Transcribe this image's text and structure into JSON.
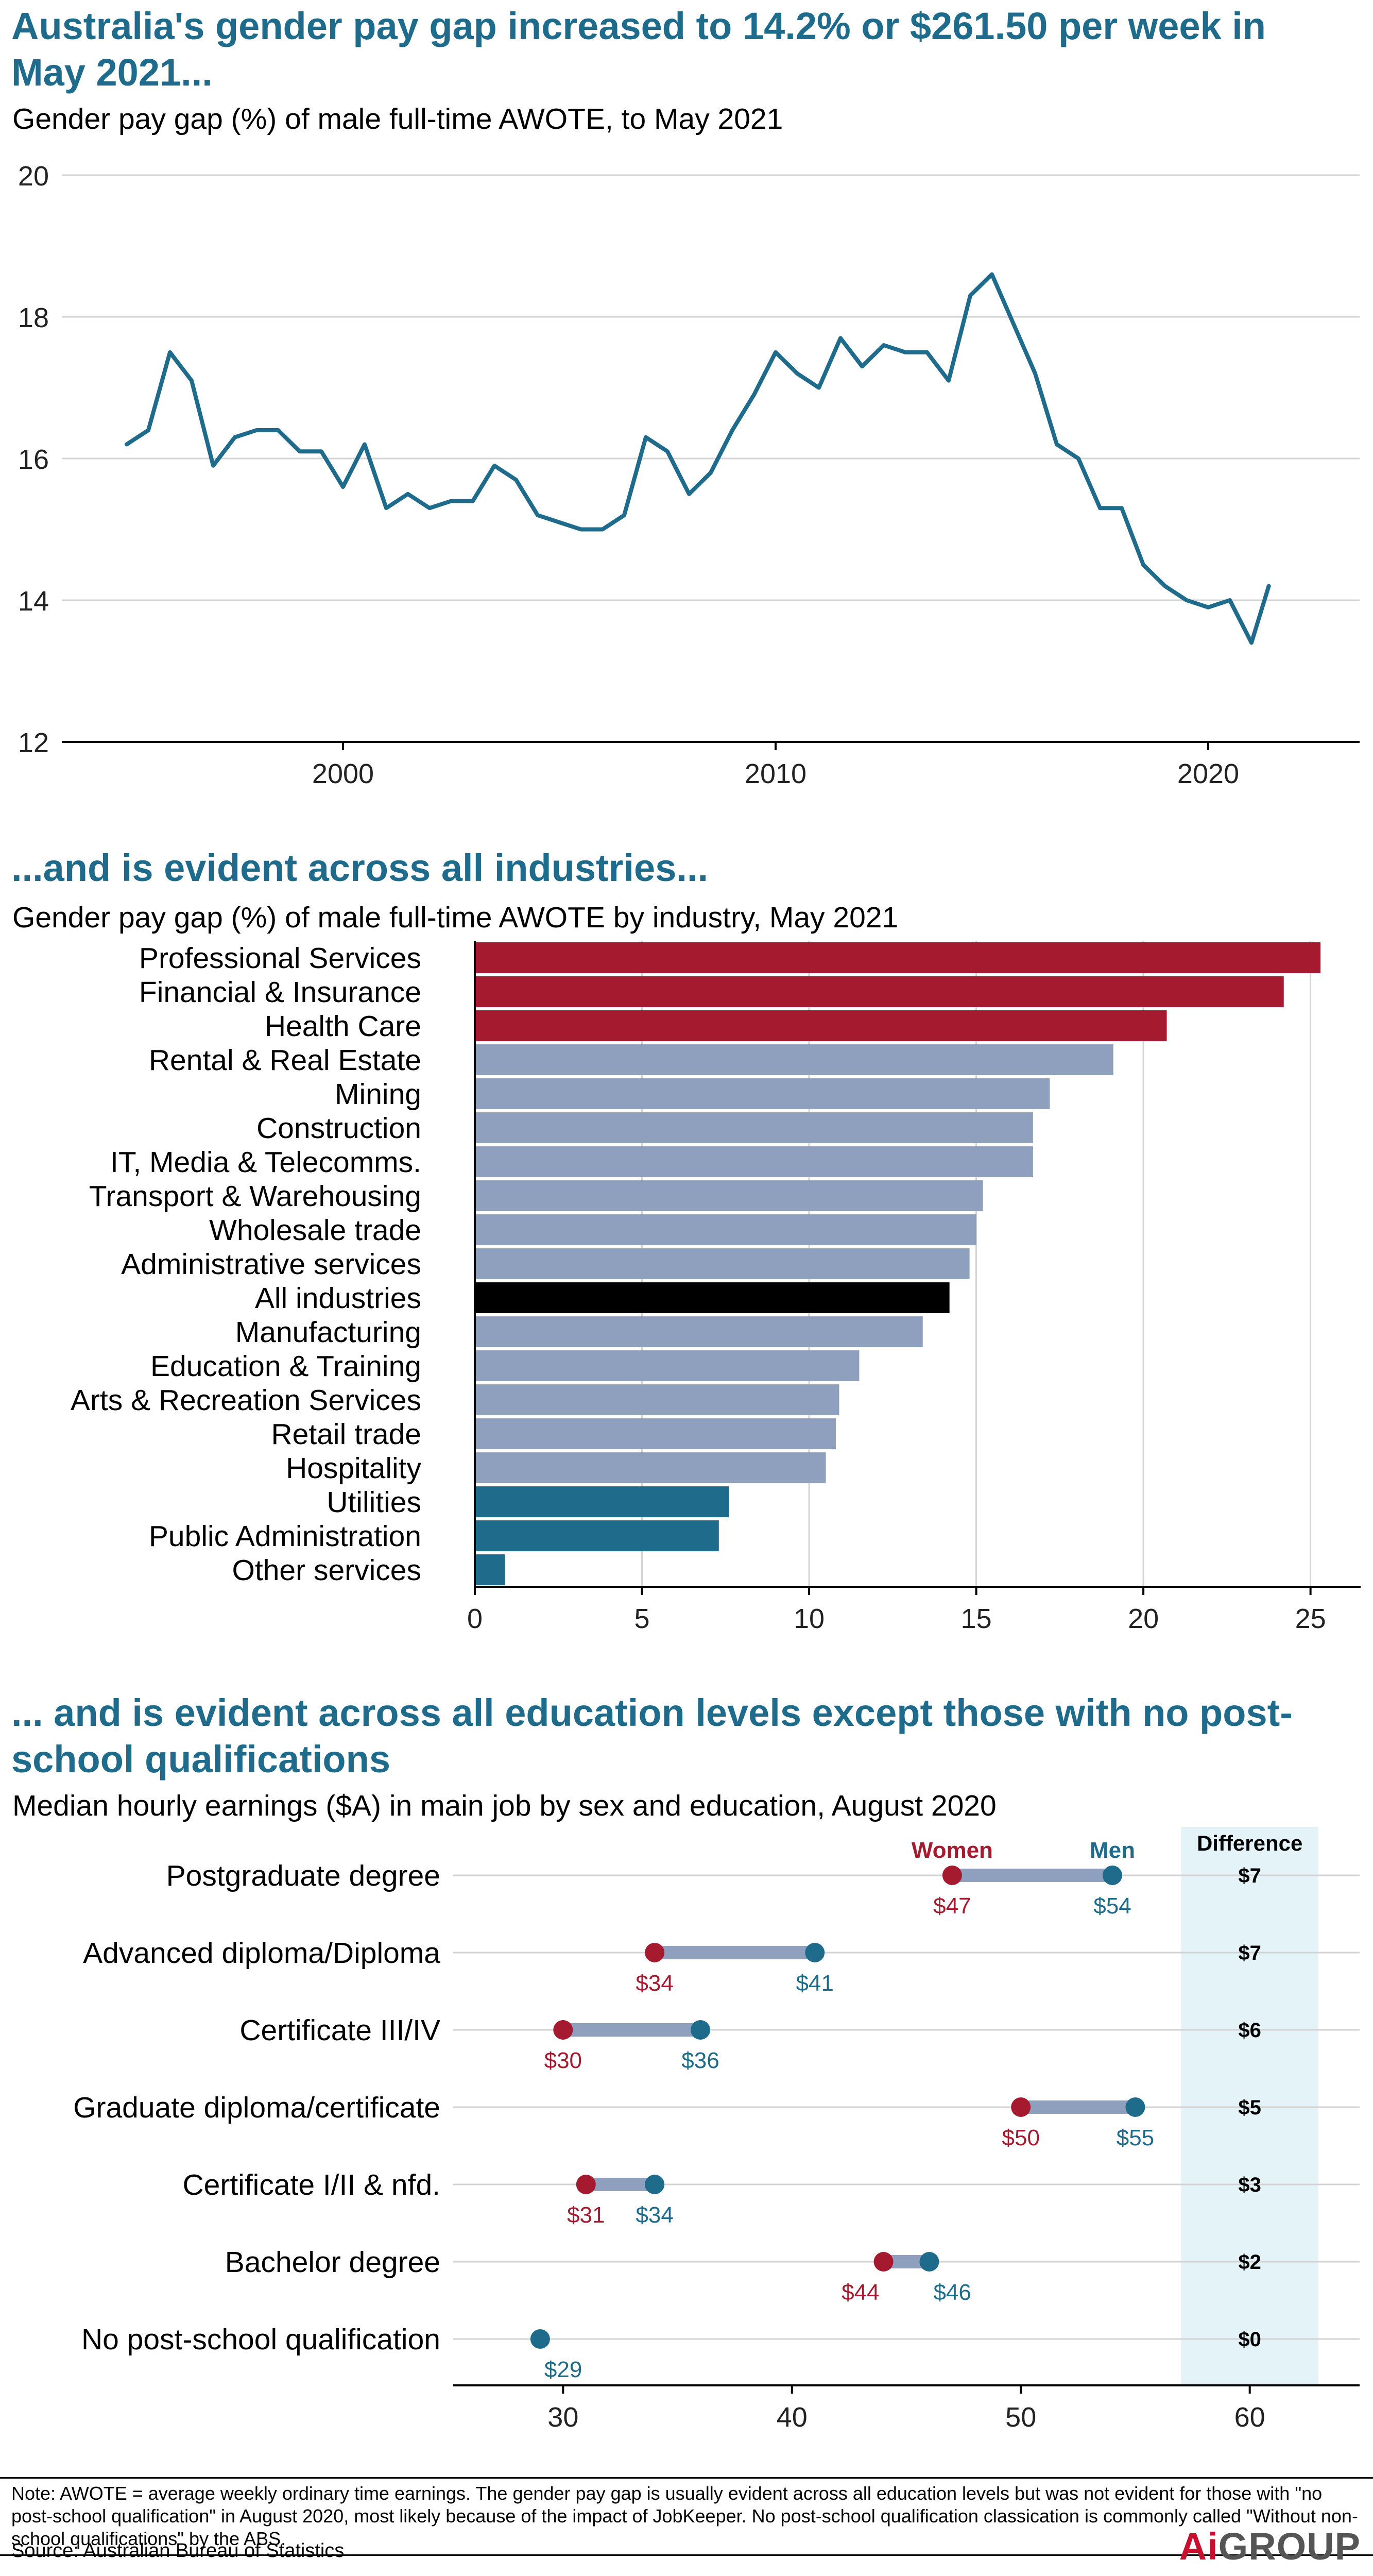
{
  "colors": {
    "title": "#1f6b8c",
    "line": "#1f6b8c",
    "bar_high": "#a51a2e",
    "bar_mid": "#8fa0bf",
    "bar_total": "#000000",
    "bar_low": "#1f6b8c",
    "women": "#a51a2e",
    "men": "#1f6b8c",
    "connector": "#8fa0bf",
    "difference_bg": "#e3f3f8"
  },
  "panel1": {
    "title": "Australia's gender pay gap increased to 14.2% or $261.50 per week in May 2021...",
    "subtitle": "Gender pay gap (%) of male full-time AWOTE, to May 2021"
  },
  "panel2": {
    "title": "...and is evident across all industries...",
    "subtitle": "Gender pay gap (%) of male full-time AWOTE by industry, May 2021"
  },
  "panel3": {
    "title": "... and is evident across all education levels except those with no post-school qualifications",
    "subtitle": "Median hourly earnings ($A) in main job by sex and education, August 2020",
    "legend_women": "Women",
    "legend_men": "Men",
    "difference_header": "Difference"
  },
  "chart_data": [
    {
      "type": "line",
      "title": "Australia's gender pay gap increased to 14.2% or $261.50 per week in May 2021...",
      "subtitle": "Gender pay gap (%) of male full-time AWOTE, to May 2021",
      "xlim": [
        1993.5,
        2023.5
      ],
      "ylim": [
        12,
        20
      ],
      "xticks": [
        2000,
        2010,
        2020
      ],
      "yticks": [
        12,
        14,
        16,
        18,
        20
      ],
      "grid": true,
      "x": [
        1995.0,
        1995.5,
        1996.0,
        1996.5,
        1997.0,
        1997.5,
        1998.0,
        1998.5,
        1999.0,
        1999.5,
        2000.0,
        2000.5,
        2001.0,
        2001.5,
        2002.0,
        2002.5,
        2003.0,
        2003.5,
        2004.0,
        2004.5,
        2005.0,
        2005.5,
        2006.0,
        2006.5,
        2007.0,
        2007.5,
        2008.0,
        2008.5,
        2009.0,
        2009.5,
        2010.0,
        2010.5,
        2011.0,
        2011.5,
        2012.0,
        2012.5,
        2013.0,
        2013.5,
        2014.0,
        2014.5,
        2015.0,
        2015.5,
        2016.0,
        2016.5,
        2017.0,
        2017.5,
        2018.0,
        2018.5,
        2019.0,
        2019.5,
        2020.0,
        2020.5,
        2021.0,
        2021.4
      ],
      "y": [
        16.2,
        16.4,
        17.5,
        17.1,
        15.9,
        16.3,
        16.4,
        16.4,
        16.1,
        16.1,
        15.6,
        16.2,
        15.3,
        15.5,
        15.3,
        15.4,
        15.4,
        15.9,
        15.7,
        15.2,
        15.1,
        15.0,
        15.0,
        15.2,
        16.3,
        16.1,
        15.5,
        15.8,
        16.4,
        16.9,
        17.5,
        17.2,
        17.0,
        17.7,
        17.3,
        17.6,
        17.5,
        17.5,
        17.1,
        18.3,
        18.6,
        17.9,
        17.2,
        16.2,
        16.0,
        15.3,
        15.3,
        14.5,
        14.2,
        14.0,
        13.9,
        14.0,
        13.4,
        14.2
      ]
    },
    {
      "type": "bar",
      "orientation": "horizontal",
      "title": "...and is evident across all industries...",
      "subtitle": "Gender pay gap (%) of male full-time AWOTE by industry, May 2021",
      "xlim": [
        0,
        26.5
      ],
      "xticks": [
        0,
        5,
        10,
        15,
        20,
        25
      ],
      "grid": true,
      "categories": [
        "Professional Services",
        "Financial & Insurance",
        "Health Care",
        "Rental & Real Estate",
        "Mining",
        "Construction",
        "IT, Media & Telecomms.",
        "Transport & Warehousing",
        "Wholesale trade",
        "Administrative services",
        "All industries",
        "Manufacturing",
        "Education & Training",
        "Arts & Recreation Services",
        "Retail trade",
        "Hospitality",
        "Utilities",
        "Public Administration",
        "Other services"
      ],
      "values": [
        25.3,
        24.2,
        20.7,
        19.1,
        17.2,
        16.7,
        16.7,
        15.2,
        15.0,
        14.8,
        14.2,
        13.4,
        11.5,
        10.9,
        10.8,
        10.5,
        7.6,
        7.3,
        0.9
      ],
      "groups": [
        "high",
        "high",
        "high",
        "mid",
        "mid",
        "mid",
        "mid",
        "mid",
        "mid",
        "mid",
        "total",
        "mid",
        "mid",
        "mid",
        "mid",
        "mid",
        "low",
        "low",
        "low"
      ]
    },
    {
      "type": "dumbbell",
      "title": "... and is evident across all education levels except those with no post-school qualifications",
      "subtitle": "Median hourly earnings ($A) in main job by sex and education, August 2020",
      "xlim": [
        25.2,
        64.8
      ],
      "xticks": [
        30,
        40,
        50,
        60
      ],
      "grid": true,
      "categories": [
        "Postgraduate degree",
        "Advanced diploma/Diploma",
        "Certificate III/IV",
        "Graduate diploma/certificate",
        "Certificate I/II & nfd.",
        "Bachelor degree",
        "No post-school qualification"
      ],
      "series": [
        {
          "name": "Women",
          "values": [
            47,
            34,
            30,
            50,
            31,
            44,
            29
          ]
        },
        {
          "name": "Men",
          "values": [
            54,
            41,
            36,
            55,
            34,
            46,
            29
          ]
        }
      ],
      "women_labels": [
        "$47",
        "$34",
        "$30",
        "$50",
        "$31",
        "$44",
        ""
      ],
      "men_labels": [
        "$54",
        "$41",
        "$36",
        "$55",
        "$34",
        "$46",
        "$29"
      ],
      "difference": [
        "$7",
        "$7",
        "$6",
        "$5",
        "$3",
        "$2",
        "$0"
      ]
    }
  ],
  "footer": {
    "note": "Note: AWOTE = average weekly ordinary time earnings. The gender pay gap is usually evident across all education levels but was not evident for those with \"no post-school qualification\" in August 2020, most likely because of the impact of JobKeeper. No post-school qualification classication is commonly called \"Without non-school qualifications\" by the ABS.",
    "source": "Source: Australian Bureau of Statistics",
    "logo_a": "Ai",
    "logo_group": "GROUP"
  }
}
